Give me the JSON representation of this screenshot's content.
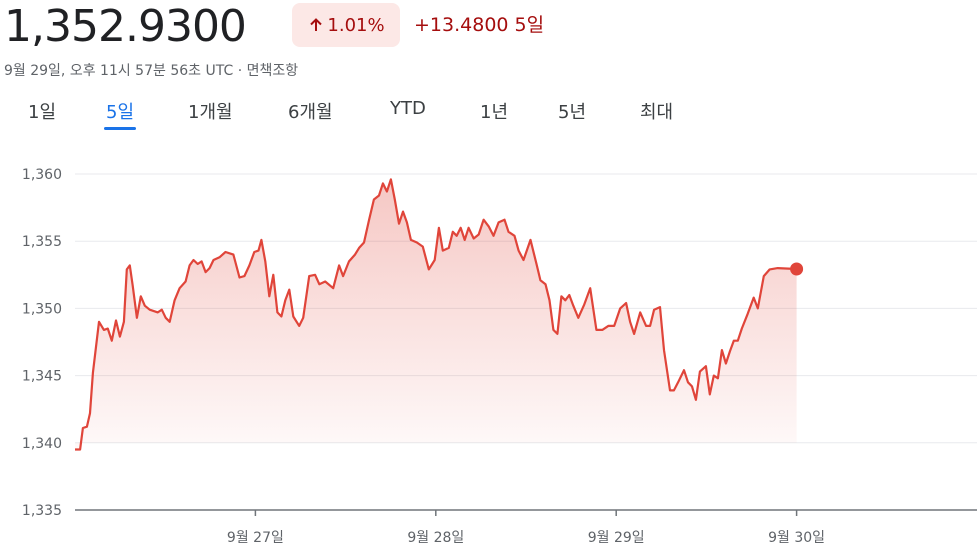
{
  "header": {
    "price": "1,352.9300",
    "change_percent": "1.01%",
    "change_value": "+13.4800",
    "period": "5일",
    "timestamp": "9월 29일, 오후 11시 57분 56초 UTC",
    "separator": "·",
    "disclaimer": "면책조항"
  },
  "tabs": {
    "items": [
      "1일",
      "5일",
      "1개월",
      "6개월",
      "YTD",
      "1년",
      "5년",
      "최대"
    ],
    "selected": 1
  },
  "chart_data": {
    "type": "line",
    "color": "#e0453a",
    "grid": true,
    "xlim": [
      26,
      31
    ],
    "ylim": [
      1335,
      1360
    ],
    "xticks": [
      {
        "value": 27,
        "label": "9월 27일"
      },
      {
        "value": 28,
        "label": "9월 28일"
      },
      {
        "value": 29,
        "label": "9월 29일"
      },
      {
        "value": 30,
        "label": "9월 30일"
      }
    ],
    "yticks": [
      {
        "value": 1335,
        "label": "1,335"
      },
      {
        "value": 1340,
        "label": "1,340"
      },
      {
        "value": 1345,
        "label": "1,345"
      },
      {
        "value": 1350,
        "label": "1,350"
      },
      {
        "value": 1355,
        "label": "1,355"
      },
      {
        "value": 1360,
        "label": "1,360"
      }
    ],
    "x": [
      26.0,
      26.028,
      26.044,
      26.066,
      26.083,
      26.099,
      26.133,
      26.16,
      26.182,
      26.204,
      26.227,
      26.249,
      26.271,
      26.287,
      26.304,
      26.32,
      26.343,
      26.365,
      26.387,
      26.414,
      26.459,
      26.481,
      26.503,
      26.525,
      26.552,
      26.58,
      26.613,
      26.635,
      26.657,
      26.68,
      26.702,
      26.724,
      26.746,
      26.768,
      26.801,
      26.834,
      26.878,
      26.912,
      26.939,
      26.967,
      26.994,
      27.017,
      27.033,
      27.055,
      27.077,
      27.099,
      27.122,
      27.144,
      27.166,
      27.188,
      27.21,
      27.243,
      27.265,
      27.298,
      27.331,
      27.354,
      27.387,
      27.431,
      27.464,
      27.486,
      27.519,
      27.552,
      27.575,
      27.602,
      27.63,
      27.657,
      27.685,
      27.707,
      27.729,
      27.751,
      27.773,
      27.796,
      27.818,
      27.84,
      27.862,
      27.895,
      27.928,
      27.961,
      27.994,
      28.017,
      28.039,
      28.072,
      28.094,
      28.116,
      28.138,
      28.16,
      28.182,
      28.21,
      28.238,
      28.265,
      28.293,
      28.32,
      28.348,
      28.381,
      28.403,
      28.436,
      28.459,
      28.486,
      28.525,
      28.558,
      28.58,
      28.608,
      28.63,
      28.652,
      28.674,
      28.696,
      28.718,
      28.74,
      28.762,
      28.79,
      28.823,
      28.856,
      28.89,
      28.923,
      28.956,
      28.989,
      29.022,
      29.055,
      29.077,
      29.099,
      29.133,
      29.166,
      29.188,
      29.21,
      29.243,
      29.265,
      29.298,
      29.32,
      29.343,
      29.376,
      29.398,
      29.42,
      29.442,
      29.464,
      29.497,
      29.519,
      29.541,
      29.564,
      29.586,
      29.608,
      29.63,
      29.652,
      29.674,
      29.696,
      29.729,
      29.762,
      29.785,
      29.818,
      29.851,
      29.895,
      30.0
    ],
    "values": [
      1339.5,
      1339.5,
      1341.1,
      1341.2,
      1342.2,
      1345.2,
      1349.0,
      1348.4,
      1348.5,
      1347.6,
      1349.1,
      1347.9,
      1349.0,
      1352.9,
      1353.2,
      1351.7,
      1349.3,
      1350.9,
      1350.2,
      1349.9,
      1349.7,
      1349.9,
      1349.3,
      1349.0,
      1350.6,
      1351.5,
      1352.0,
      1353.2,
      1353.6,
      1353.3,
      1353.5,
      1352.7,
      1353.0,
      1353.6,
      1353.8,
      1354.2,
      1354.0,
      1352.3,
      1352.4,
      1353.2,
      1354.2,
      1354.3,
      1355.1,
      1353.5,
      1350.9,
      1352.5,
      1349.7,
      1349.4,
      1350.6,
      1351.4,
      1349.4,
      1348.7,
      1349.3,
      1352.4,
      1352.5,
      1351.8,
      1352.0,
      1351.5,
      1353.2,
      1352.4,
      1353.5,
      1354.0,
      1354.5,
      1354.9,
      1356.6,
      1358.1,
      1358.4,
      1359.3,
      1358.7,
      1359.6,
      1358.1,
      1356.3,
      1357.2,
      1356.4,
      1355.1,
      1354.9,
      1354.6,
      1352.9,
      1353.6,
      1356.0,
      1354.3,
      1354.5,
      1355.7,
      1355.4,
      1356.0,
      1355.1,
      1356.0,
      1355.2,
      1355.5,
      1356.6,
      1356.1,
      1355.4,
      1356.4,
      1356.6,
      1355.7,
      1355.4,
      1354.3,
      1353.6,
      1355.1,
      1353.3,
      1352.1,
      1351.8,
      1350.6,
      1348.4,
      1348.1,
      1350.9,
      1350.6,
      1351.0,
      1350.2,
      1349.3,
      1350.3,
      1351.5,
      1348.4,
      1348.4,
      1348.7,
      1348.7,
      1350.0,
      1350.4,
      1349.0,
      1348.1,
      1349.7,
      1348.7,
      1348.7,
      1349.9,
      1350.1,
      1346.9,
      1343.9,
      1343.9,
      1344.5,
      1345.4,
      1344.5,
      1344.2,
      1343.2,
      1345.3,
      1345.7,
      1343.6,
      1345.0,
      1344.8,
      1346.9,
      1345.9,
      1346.8,
      1347.6,
      1347.6,
      1348.5,
      1349.6,
      1350.8,
      1350.0,
      1352.4,
      1352.9,
      1353.0,
      1352.93
    ]
  }
}
